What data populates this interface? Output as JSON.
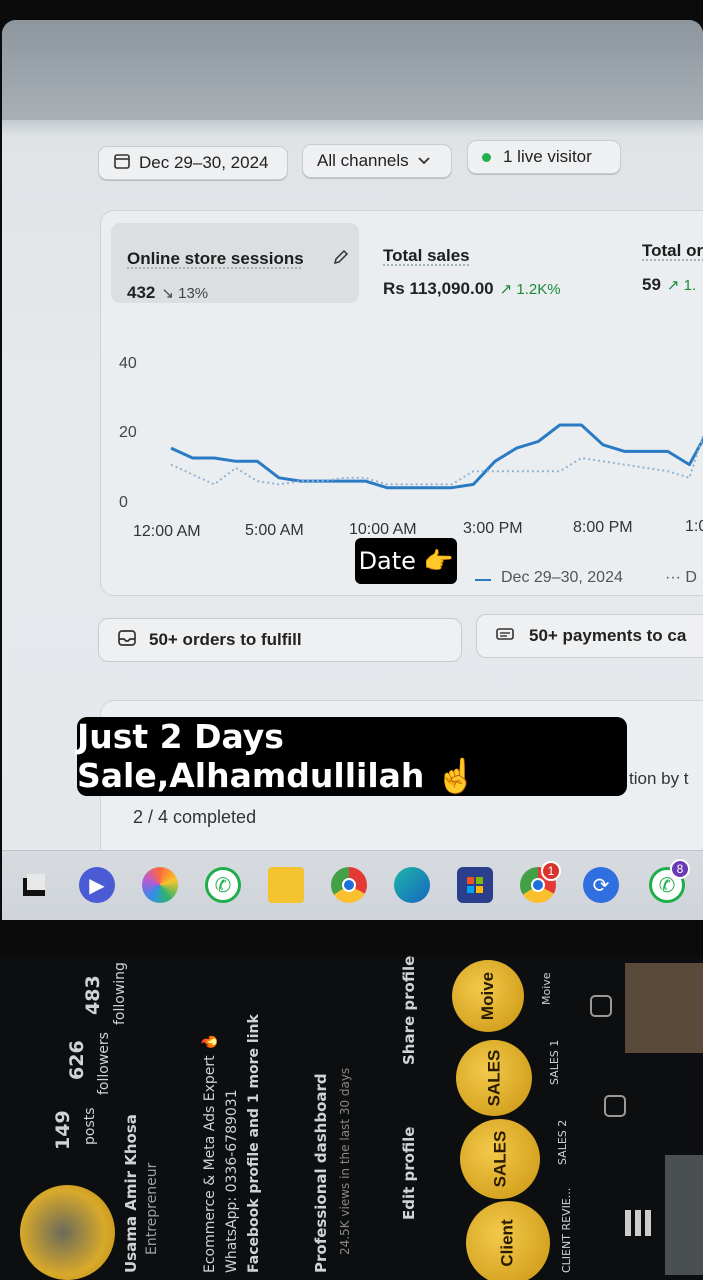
{
  "filters": {
    "date_range": "Dec 29–30, 2024",
    "channels": "All channels",
    "live_visitors": "1 live visitor"
  },
  "metrics": [
    {
      "title": "Online store sessions",
      "value": "432",
      "change": "13%",
      "direction": "down"
    },
    {
      "title": "Total sales",
      "value": "Rs 113,090.00",
      "change": "1.2K%",
      "direction": "up"
    },
    {
      "title": "Total or",
      "value": "59",
      "change": "1.",
      "direction": "up"
    }
  ],
  "chart_data": {
    "type": "line",
    "ylim": [
      0,
      40
    ],
    "yticks": [
      "40",
      "20",
      "0"
    ],
    "xticks": [
      "12:00 AM",
      "5:00 AM",
      "10:00 AM",
      "3:00 PM",
      "8:00 PM",
      "1:0"
    ],
    "series": [
      {
        "name": "Dec 29–30, 2024",
        "style": "solid",
        "color": "#2a7bc4",
        "x": [
          0,
          1,
          2,
          3,
          4,
          5,
          6,
          7,
          8,
          9,
          10,
          11,
          12,
          13,
          14,
          15,
          16,
          17,
          18,
          19,
          20,
          21,
          22,
          23,
          24,
          25
        ],
        "values": [
          13,
          10,
          10,
          9,
          9,
          4,
          3,
          3,
          3,
          3,
          1,
          1,
          1,
          1,
          2,
          9,
          13,
          15,
          20,
          20,
          14,
          12,
          12,
          12,
          8,
          20
        ]
      },
      {
        "name": "",
        "style": "dotted",
        "color": "#8fb4d6",
        "x": [
          0,
          1,
          2,
          3,
          4,
          5,
          6,
          7,
          8,
          9,
          10,
          11,
          12,
          13,
          14,
          15,
          16,
          17,
          18,
          19,
          20,
          21,
          22,
          23,
          24,
          25
        ],
        "values": [
          8,
          5,
          2,
          7,
          3,
          2,
          3,
          3,
          4,
          4,
          2,
          2,
          2,
          2,
          6,
          6,
          6,
          6,
          6,
          10,
          9,
          8,
          7,
          6,
          4,
          24
        ]
      }
    ]
  },
  "legend": {
    "current": "Dec 29–30, 2024",
    "previous_prefix": "··· D"
  },
  "stickers": {
    "date_label": "Date 👉",
    "headline": "Just 2 Days Sale,Alhamdullilah ☝️"
  },
  "tasks": {
    "orders": "50+ orders to fulfill",
    "payments": "50+ payments to ca",
    "progress": "2 / 4 completed",
    "hidden_text": "tion by t"
  },
  "taskbar": {
    "whatsapp_badge": "8",
    "chrome_badge": "1"
  },
  "instagram": {
    "posts_count": "149",
    "posts_label": "posts",
    "followers_count": "626",
    "followers_label": "followers",
    "following_count": "483",
    "following_label": "following",
    "name": "Usama Amir Khosa",
    "bio_1": "Entrepreneur",
    "bio_2": "Ecommerce & Meta Ads Expert 🔥",
    "bio_3": "WhatsApp: 0336-6789031",
    "bio_4": "Facebook profile and 1 more link",
    "dashboard": "Professional dashboard",
    "dashboard_sub": "24.5K views in the last 30 days",
    "edit_profile": "Edit profile",
    "share_profile": "Share profile",
    "highlights": [
      "Moive",
      "SALES",
      "SALES",
      "Client"
    ],
    "highlight_labels": [
      "Moive",
      "SALES 1",
      "SALES 2",
      "CLIENT REVIE..."
    ]
  },
  "colors": {
    "accent_line": "#2a7bc4",
    "positive": "#1a8a3a",
    "live_dot": "#21b24b",
    "highlight_gold": "#e0ad2a"
  }
}
